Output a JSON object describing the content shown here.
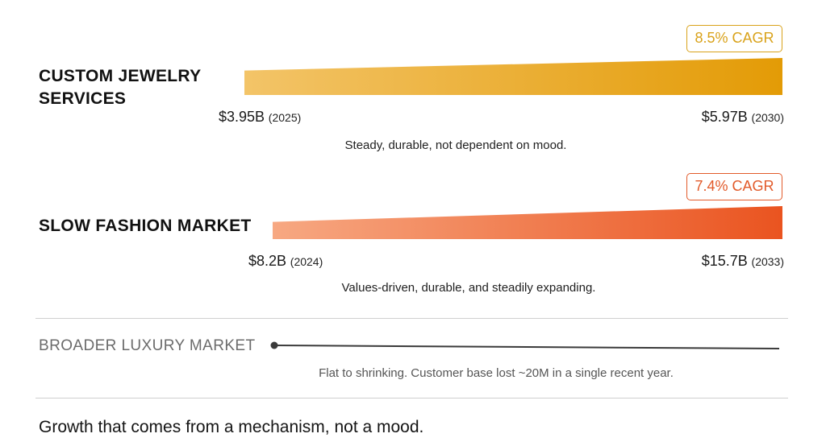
{
  "chart_data": [
    {
      "type": "area",
      "label_lines": [
        "CUSTOM JEWELRY",
        "SERVICES"
      ],
      "badge": "8.5% CAGR",
      "start": {
        "value_text": "$3.95B",
        "year_text": "(2025)",
        "value": 3.95,
        "year": 2025
      },
      "end": {
        "value_text": "$5.97B",
        "year_text": "(2030)",
        "value": 5.97,
        "year": 2030
      },
      "description": "Steady, durable, not dependent on mood.",
      "colors": {
        "from": "#f3c468",
        "to": "#e39b06",
        "badge": "#d9a21a"
      }
    },
    {
      "type": "area",
      "label_lines": [
        "SLOW FASHION MARKET"
      ],
      "badge": "7.4% CAGR",
      "start": {
        "value_text": "$8.2B",
        "year_text": "(2024)",
        "value": 8.2,
        "year": 2024
      },
      "end": {
        "value_text": "$15.7B",
        "year_text": "(2033)",
        "value": 15.7,
        "year": 2033
      },
      "description": "Values-driven, durable, and steadily expanding.",
      "colors": {
        "from": "#f7a882",
        "to": "#ea5420",
        "badge": "#e25a2a"
      }
    },
    {
      "type": "line",
      "label_lines": [
        "BROADER LUXURY MARKET"
      ],
      "trend": "flat to shrinking",
      "description": "Flat to shrinking. Customer base lost ~20M in a single recent year.",
      "colors": {
        "line": "#3a3a3a"
      }
    }
  ],
  "footer": "Growth that comes from a mechanism, not a mood."
}
